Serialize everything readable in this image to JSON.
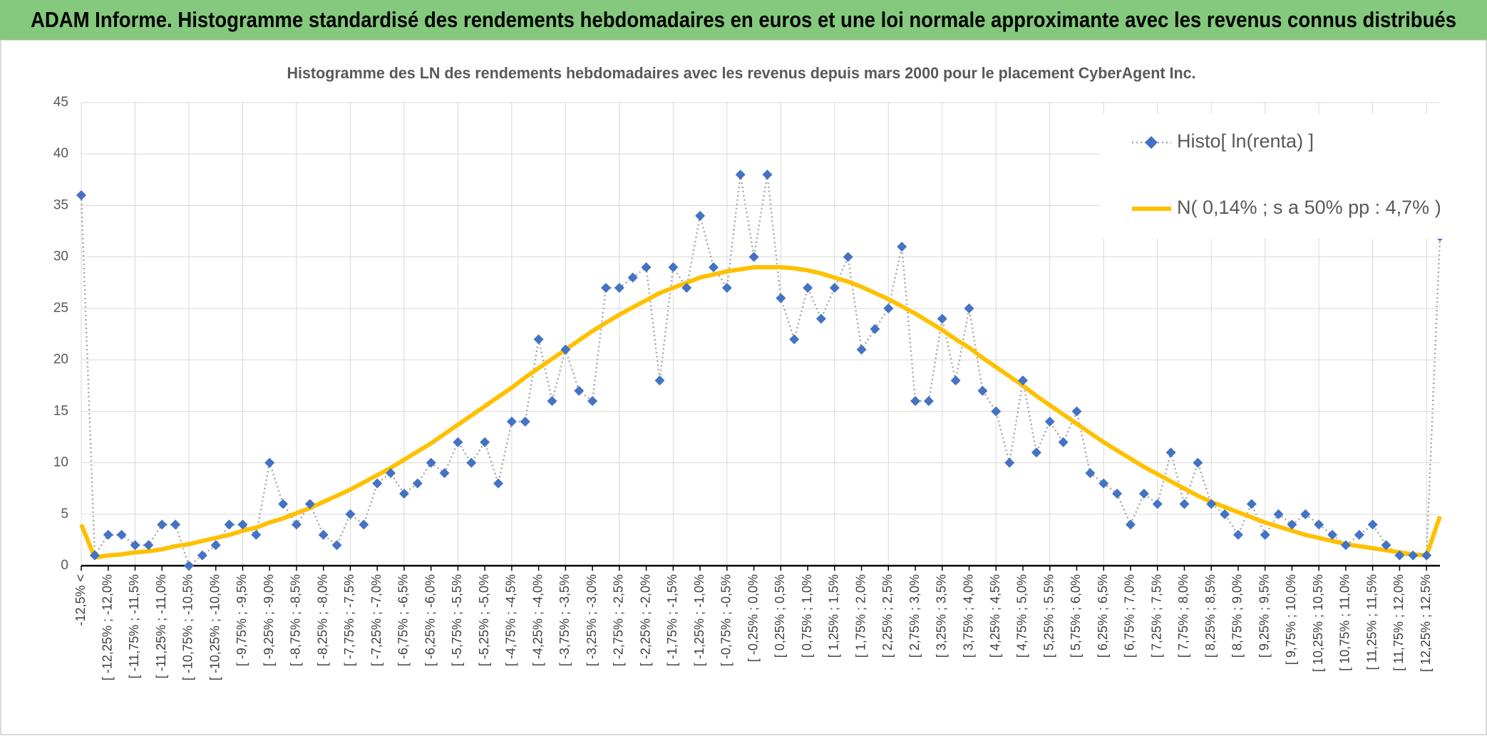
{
  "header": {
    "title": "ADAM Informe. Histogramme standardisé des rendements hebdomadaires en euros et une loi normale approximante avec les revenus connus distribués"
  },
  "chart_data": {
    "type": "line",
    "title": "Histogramme des LN des rendements hebdomadaires avec les revenus depuis mars 2000 pour le placement CyberAgent Inc.",
    "categories": [
      "-12,5% <",
      null,
      "[ -12,25% ; -12,0%",
      null,
      "[ -11,75% ; -11,5%",
      null,
      "[ -11,25% ; -11,0%",
      null,
      "[ -10,75% ; -10,5%",
      null,
      "[ -10,25% ; -10,0%",
      null,
      "[ -9,75% ; -9,5%",
      null,
      "[ -9,25% ; -9,0%",
      null,
      "[ -8,75% ; -8,5%",
      null,
      "[ -8,25% ; -8,0%",
      null,
      "[ -7,75% ; -7,5%",
      null,
      "[ -7,25% ; -7,0%",
      null,
      "[ -6,75% ; -6,5%",
      null,
      "[ -6,25% ; -6,0%",
      null,
      "[ -5,75% ; -5,5%",
      null,
      "[ -5,25% ; -5,0%",
      null,
      "[ -4,75% ; -4,5%",
      null,
      "[ -4,25% ; -4,0%",
      null,
      "[ -3,75% ; -3,5%",
      null,
      "[ -3,25% ; -3,0%",
      null,
      "[ -2,75% ; -2,5%",
      null,
      "[ -2,25% ; -2,0%",
      null,
      "[ -1,75% ; -1,5%",
      null,
      "[ -1,25% ; -1,0%",
      null,
      "[ -0,75% ; -0,5%",
      null,
      "[ -0,25% ; 0,0%",
      null,
      "[ 0,25% ; 0,5%",
      null,
      "[ 0,75% ; 1,0%",
      null,
      "[ 1,25% ; 1,5%",
      null,
      "[ 1,75% ; 2,0%",
      null,
      "[ 2,25% ; 2,5%",
      null,
      "[ 2,75% ; 3,0%",
      null,
      "[ 3,25% ; 3,5%",
      null,
      "[ 3,75% ; 4,0%",
      null,
      "[ 4,25% ; 4,5%",
      null,
      "[ 4,75% ; 5,0%",
      null,
      "[ 5,25% ; 5,5%",
      null,
      "[ 5,75% ; 6,0%",
      null,
      "[ 6,25% ; 6,5%",
      null,
      "[ 6,75% ; 7,0%",
      null,
      "[ 7,25% ; 7,5%",
      null,
      "[ 7,75% ; 8,0%",
      null,
      "[ 8,25% ; 8,5%",
      null,
      "[ 8,75% ; 9,0%",
      null,
      "[ 9,25% ; 9,5%",
      null,
      "[ 9,75% ; 10,0%",
      null,
      "[ 10,25% ; 10,5%",
      null,
      "[ 10,75% ; 11,0%",
      null,
      "[ 11,25% ; 11,5%",
      null,
      "[ 11,75% ; 12,0%",
      null,
      "[ 12,25% ; 12,5%",
      null
    ],
    "series": [
      {
        "name": "Histo[ ln(renta) ]",
        "color": "#4472c4",
        "line_color": "#a6a6a6",
        "values": [
          36,
          1,
          3,
          3,
          2,
          2,
          4,
          4,
          0,
          1,
          2,
          4,
          4,
          3,
          10,
          6,
          4,
          6,
          3,
          2,
          5,
          4,
          8,
          9,
          7,
          8,
          10,
          9,
          12,
          10,
          12,
          8,
          14,
          14,
          22,
          16,
          21,
          17,
          16,
          27,
          27,
          28,
          29,
          18,
          29,
          27,
          34,
          29,
          27,
          38,
          30,
          38,
          26,
          22,
          27,
          24,
          27,
          30,
          21,
          23,
          25,
          31,
          16,
          16,
          24,
          18,
          25,
          17,
          15,
          10,
          18,
          11,
          14,
          12,
          15,
          9,
          8,
          7,
          4,
          7,
          6,
          11,
          6,
          10,
          6,
          5,
          3,
          6,
          3,
          5,
          4,
          5,
          4,
          3,
          2,
          3,
          4,
          2,
          1,
          1,
          1,
          32
        ]
      },
      {
        "name": "N( 0,14% ; s a 50% pp : 4,7% )",
        "color": "#ffc000",
        "values": [
          4,
          0.8,
          1.0,
          1.1,
          1.3,
          1.4,
          1.6,
          1.9,
          2.1,
          2.4,
          2.7,
          3.0,
          3.4,
          3.7,
          4.2,
          4.6,
          5.1,
          5.6,
          6.2,
          6.8,
          7.4,
          8.1,
          8.8,
          9.5,
          10.3,
          11.1,
          11.9,
          12.8,
          13.7,
          14.6,
          15.5,
          16.4,
          17.3,
          18.3,
          19.2,
          20.1,
          21.0,
          21.9,
          22.8,
          23.6,
          24.4,
          25.1,
          25.8,
          26.5,
          27.0,
          27.5,
          28.0,
          28.3,
          28.6,
          28.8,
          29.0,
          29.0,
          29.0,
          28.9,
          28.7,
          28.4,
          28.0,
          27.6,
          27.1,
          26.5,
          25.9,
          25.2,
          24.5,
          23.7,
          22.9,
          22.0,
          21.2,
          20.2,
          19.3,
          18.4,
          17.5,
          16.5,
          15.6,
          14.7,
          13.8,
          12.9,
          12.0,
          11.2,
          10.4,
          9.6,
          8.9,
          8.2,
          7.5,
          6.8,
          6.2,
          5.7,
          5.2,
          4.7,
          4.2,
          3.8,
          3.4,
          3.0,
          2.7,
          2.4,
          2.1,
          1.9,
          1.7,
          1.5,
          1.3,
          1.1,
          1.0,
          4.8
        ]
      }
    ],
    "ylim": [
      0,
      45
    ],
    "yticks": [
      0,
      5,
      10,
      15,
      20,
      25,
      30,
      35,
      40,
      45
    ],
    "grid": true,
    "legend": "top-right"
  }
}
